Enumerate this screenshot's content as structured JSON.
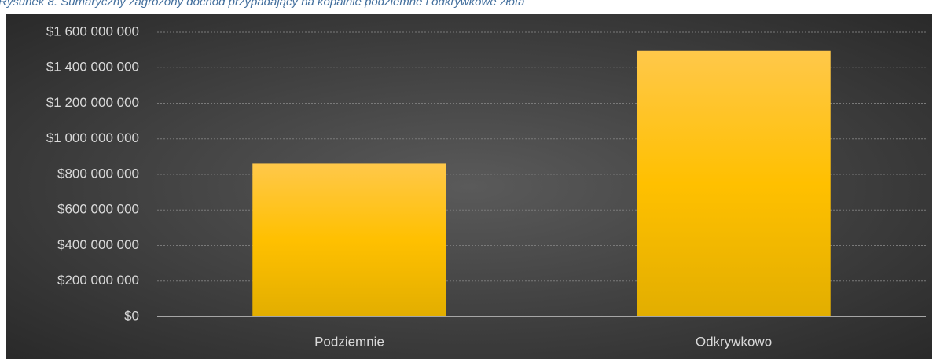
{
  "caption": "Rysunek 8. Sumaryczny zagrożony dochód przypadający na kopalnie podziemne i odkrywkowe złota",
  "chart_data": {
    "type": "bar",
    "categories": [
      "Podziemnie",
      "Odkrywkowo"
    ],
    "values": [
      860000000,
      1495000000
    ],
    "color": "#ffc000",
    "ylim": [
      0,
      1600000000
    ],
    "yticks": [
      {
        "value": 0,
        "label": "$0"
      },
      {
        "value": 200000000,
        "label": "$200 000 000"
      },
      {
        "value": 400000000,
        "label": "$400 000 000"
      },
      {
        "value": 600000000,
        "label": "$600 000 000"
      },
      {
        "value": 800000000,
        "label": "$800 000 000"
      },
      {
        "value": 1000000000,
        "label": "$1 000 000 000"
      },
      {
        "value": 1200000000,
        "label": "$1 200 000 000"
      },
      {
        "value": 1400000000,
        "label": "$1 400 000 000"
      },
      {
        "value": 1600000000,
        "label": "$1 600 000 000"
      }
    ],
    "grid": true
  }
}
